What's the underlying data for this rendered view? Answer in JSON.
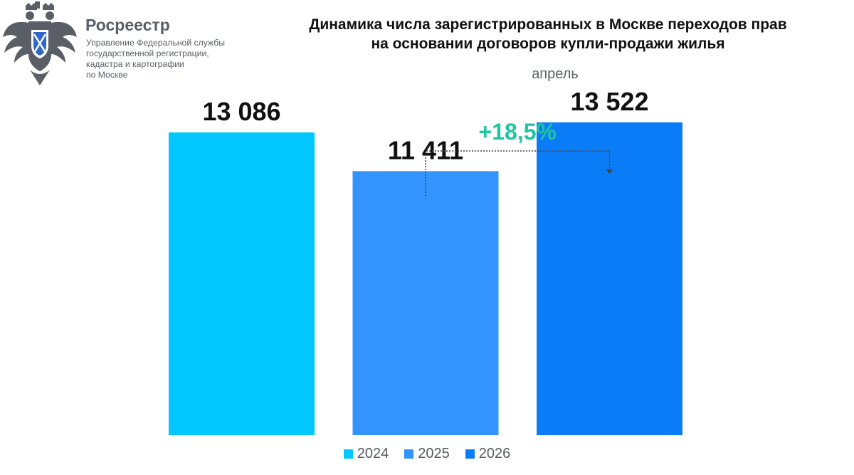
{
  "brand": {
    "name": "Росреестр",
    "subtitle": "Управление Федеральной службы\nгосударственной регистрации,\nкадастра и картографии\nпо Москве"
  },
  "chart_data": {
    "type": "bar",
    "title": "Динамика числа зарегистрированных в Москве переходов прав\nна основании договоров купли-продажи жилья",
    "subtitle": "апрель",
    "categories": [
      "2024",
      "2025",
      "2026"
    ],
    "values": [
      13086,
      11411,
      13522
    ],
    "value_labels": [
      "13 086",
      "11 411",
      "13 522"
    ],
    "colors": [
      "#00c8ff",
      "#3393ff",
      "#0a7cf7"
    ],
    "ylim": [
      0,
      14500
    ],
    "grid": false,
    "legend": "bottom-center",
    "annotation": {
      "text": "+18,5%",
      "from": "2025",
      "to": "2026",
      "color": "#1fc7a0"
    }
  }
}
